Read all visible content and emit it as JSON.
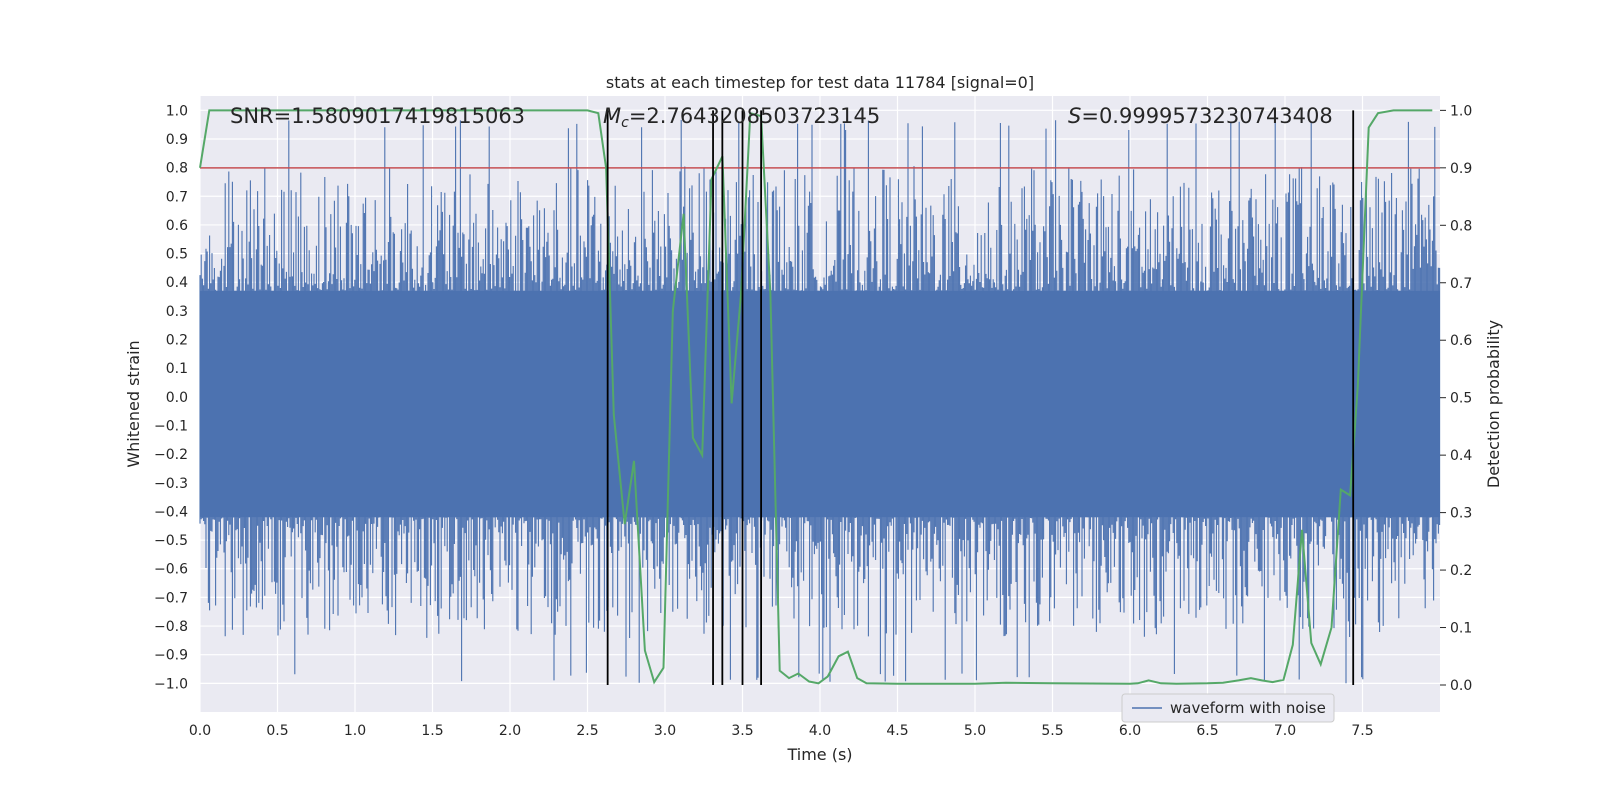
{
  "chart_data": {
    "type": "line",
    "title": "stats at each timestep for test data 11784 [signal=0]",
    "xlabel": "Time (s)",
    "ylabel": "Whitened strain",
    "y2label": "Detection probability",
    "xlim": [
      0.0,
      8.0
    ],
    "ylim": [
      -1.1,
      1.05
    ],
    "y2lim": [
      -0.047,
      1.025
    ],
    "xticks": [
      "0.0",
      "0.5",
      "1.0",
      "1.5",
      "2.0",
      "2.5",
      "3.0",
      "3.5",
      "4.0",
      "4.5",
      "5.0",
      "5.5",
      "6.0",
      "6.5",
      "7.0",
      "7.5"
    ],
    "yticks": [
      "1.0",
      "0.9",
      "0.8",
      "0.7",
      "0.6",
      "0.5",
      "0.4",
      "0.3",
      "0.2",
      "0.1",
      "0.0",
      "−0.1",
      "−0.2",
      "−0.3",
      "−0.4",
      "−0.5",
      "−0.6",
      "−0.7",
      "−0.8",
      "−0.9",
      "−1.0"
    ],
    "y2ticks": [
      "1.0",
      "0.9",
      "0.8",
      "0.7",
      "0.6",
      "0.5",
      "0.4",
      "0.3",
      "0.2",
      "0.1",
      "0.0"
    ],
    "annotations": {
      "snr": "SNR=1.5809017419815063",
      "mc_symbol": "M",
      "mc_sub": "c",
      "mc_value": "=2.7643208503723145",
      "s_symbol": "S",
      "s_value": "=0.9999573230743408"
    },
    "legend": {
      "label": "waveform with noise",
      "position": "lower-right"
    },
    "colors": {
      "waveform": "#4c72b0",
      "probability": "#55a868",
      "threshold": "#c44e52",
      "vlines": "#000000",
      "background": "#eaeaf2",
      "grid": "#ffffff"
    },
    "series": [
      {
        "name": "waveform with noise",
        "axis": "left",
        "kind": "noise",
        "envelope_low": -1.0,
        "envelope_high": 0.97,
        "band": [
          -0.42,
          0.37
        ],
        "x_range": [
          0.0,
          8.0
        ]
      },
      {
        "name": "Detection probability",
        "axis": "right",
        "x": [
          0.0,
          0.06,
          0.5,
          1.0,
          1.5,
          2.0,
          2.3,
          2.5,
          2.57,
          2.62,
          2.67,
          2.74,
          2.8,
          2.87,
          2.93,
          2.99,
          3.05,
          3.12,
          3.18,
          3.24,
          3.3,
          3.37,
          3.43,
          3.49,
          3.55,
          3.62,
          3.68,
          3.74,
          3.8,
          3.86,
          3.93,
          3.99,
          4.05,
          4.12,
          4.18,
          4.24,
          4.3,
          4.5,
          5.0,
          5.2,
          5.5,
          6.0,
          6.05,
          6.12,
          6.2,
          6.3,
          6.5,
          6.6,
          6.7,
          6.78,
          6.85,
          6.92,
          6.99,
          7.05,
          7.11,
          7.17,
          7.23,
          7.3,
          7.36,
          7.42,
          7.47,
          7.54,
          7.6,
          7.7,
          7.95
        ],
        "y": [
          0.9,
          1.0,
          1.0,
          1.0,
          1.0,
          1.0,
          1.0,
          1.0,
          0.995,
          0.9,
          0.47,
          0.28,
          0.39,
          0.06,
          0.005,
          0.03,
          0.65,
          0.82,
          0.43,
          0.4,
          0.88,
          0.92,
          0.49,
          0.68,
          0.995,
          0.99,
          0.68,
          0.025,
          0.012,
          0.02,
          0.006,
          0.003,
          0.015,
          0.05,
          0.058,
          0.012,
          0.003,
          0.002,
          0.002,
          0.004,
          0.003,
          0.002,
          0.003,
          0.008,
          0.003,
          0.002,
          0.003,
          0.004,
          0.008,
          0.012,
          0.008,
          0.005,
          0.009,
          0.07,
          0.27,
          0.073,
          0.036,
          0.1,
          0.34,
          0.33,
          0.52,
          0.97,
          0.995,
          1.0,
          1.0
        ]
      },
      {
        "name": "threshold",
        "axis": "right",
        "kind": "hline",
        "y": 0.9
      },
      {
        "name": "detections",
        "axis": "right",
        "kind": "vlines",
        "x": [
          2.63,
          3.31,
          3.37,
          3.5,
          3.62,
          7.44
        ],
        "y_range": [
          0.0,
          1.0
        ]
      }
    ]
  }
}
